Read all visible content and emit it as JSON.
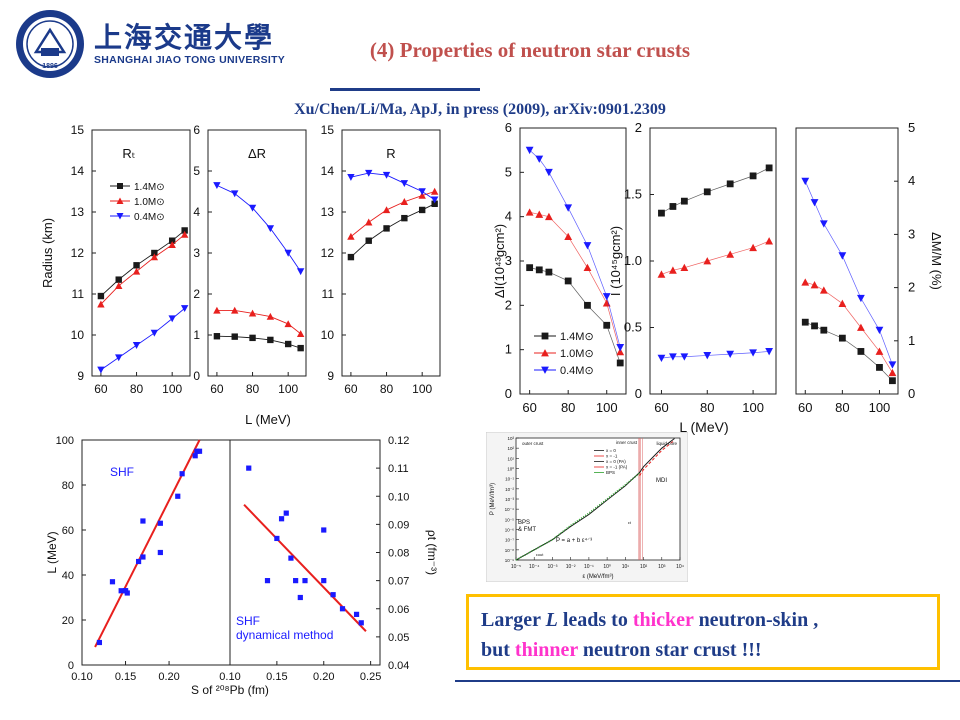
{
  "header": {
    "logo_cn": "上海交通大學",
    "logo_en": "SHANGHAI JIAO TONG UNIVERSITY",
    "logo_year": "1896",
    "title": "(4) Properties of neutron star crusts",
    "citation": "Xu/Chen/Li/Ma, ApJ, in press (2009), arXiv:0901.2309"
  },
  "conclusion": {
    "l1_a": "Larger ",
    "l1_b": "L",
    "l1_c": " leads to ",
    "l1_d": "thicker",
    "l1_e": " neutron-skin ,",
    "l2_a": "but ",
    "l2_b": "thinner",
    "l2_c": " neutron star crust !!!"
  },
  "colors": {
    "black": "#1a1a1a",
    "red": "#e8201e",
    "blue": "#1a1aff",
    "title": "#c0504d",
    "navy": "#1f3c88",
    "box": "#ffc000",
    "pink": "#ff33cc"
  },
  "chart_data": [
    {
      "id": "radius",
      "type": "line",
      "x": [
        60,
        70,
        80,
        90,
        100,
        107
      ],
      "xlim": [
        55,
        110
      ],
      "xticks": [
        "60",
        "80",
        "100"
      ],
      "xlabel": "L (MeV)",
      "legend": [
        "1.4M⊙",
        "1.0M⊙",
        "0.4M⊙"
      ],
      "panels": [
        {
          "label": "Rₜ",
          "ylabel": "Radius (km)",
          "ylim": [
            9,
            15
          ],
          "yticks": [
            "9",
            "10",
            "11",
            "12",
            "13",
            "14",
            "15"
          ],
          "series": [
            {
              "name": "1.4M⊙",
              "color": "#1a1a1a",
              "marker": "square",
              "values": [
                10.95,
                11.35,
                11.7,
                12.0,
                12.3,
                12.55
              ]
            },
            {
              "name": "1.0M⊙",
              "color": "#e8201e",
              "marker": "triangle-up",
              "values": [
                10.75,
                11.2,
                11.55,
                11.9,
                12.2,
                12.45
              ]
            },
            {
              "name": "0.4M⊙",
              "color": "#1a1aff",
              "marker": "triangle-down",
              "values": [
                9.15,
                9.45,
                9.75,
                10.05,
                10.4,
                10.65
              ]
            }
          ]
        },
        {
          "label": "ΔR",
          "ylim": [
            0,
            6
          ],
          "yticks": [
            "0",
            "1",
            "2",
            "3",
            "4",
            "5",
            "6"
          ],
          "series": [
            {
              "name": "1.4M⊙",
              "color": "#1a1a1a",
              "marker": "square",
              "values": [
                0.97,
                0.96,
                0.93,
                0.88,
                0.78,
                0.68
              ]
            },
            {
              "name": "1.0M⊙",
              "color": "#e8201e",
              "marker": "triangle-up",
              "values": [
                1.6,
                1.6,
                1.53,
                1.45,
                1.27,
                1.03
              ]
            },
            {
              "name": "0.4M⊙",
              "color": "#1a1aff",
              "marker": "triangle-down",
              "values": [
                4.65,
                4.45,
                4.1,
                3.6,
                3.0,
                2.55
              ]
            }
          ]
        },
        {
          "label": "R",
          "ylim": [
            9,
            15
          ],
          "yticks": [
            "9",
            "10",
            "11",
            "12",
            "13",
            "14",
            "15"
          ],
          "series": [
            {
              "name": "1.4M⊙",
              "color": "#1a1a1a",
              "marker": "square",
              "values": [
                11.9,
                12.3,
                12.6,
                12.85,
                13.05,
                13.2
              ]
            },
            {
              "name": "1.0M⊙",
              "color": "#e8201e",
              "marker": "triangle-up",
              "values": [
                12.4,
                12.75,
                13.05,
                13.25,
                13.4,
                13.5
              ]
            },
            {
              "name": "0.4M⊙",
              "color": "#1a1aff",
              "marker": "triangle-down",
              "values": [
                13.85,
                13.95,
                13.9,
                13.7,
                13.5,
                13.3
              ]
            }
          ]
        }
      ]
    },
    {
      "id": "inertia",
      "type": "line",
      "x": [
        60,
        65,
        70,
        80,
        90,
        100,
        107
      ],
      "xlim": [
        55,
        110
      ],
      "xticks": [
        "60",
        "80",
        "100"
      ],
      "xlabel": "L (MeV)",
      "legend": [
        "1.4M⊙",
        "1.0M⊙",
        "0.4M⊙"
      ],
      "panels": [
        {
          "ylabel": "ΔI(10⁴³gcm²)",
          "ylim": [
            0,
            6
          ],
          "yticks": [
            "0",
            "1",
            "2",
            "3",
            "4",
            "5",
            "6"
          ],
          "axis_side": "left",
          "series": [
            {
              "name": "1.4M⊙",
              "color": "#1a1a1a",
              "marker": "square",
              "values": [
                2.85,
                2.8,
                2.75,
                2.55,
                2.0,
                1.55,
                0.7
              ]
            },
            {
              "name": "1.0M⊙",
              "color": "#e8201e",
              "marker": "triangle-up",
              "values": [
                4.1,
                4.05,
                4.0,
                3.55,
                2.85,
                2.05,
                0.95
              ]
            },
            {
              "name": "0.4M⊙",
              "color": "#1a1aff",
              "marker": "triangle-down",
              "values": [
                5.5,
                5.3,
                5.0,
                4.2,
                3.35,
                2.2,
                1.05
              ]
            }
          ]
        },
        {
          "ylabel": "I (10⁴⁵gcm²)",
          "ylim": [
            0,
            2
          ],
          "yticks": [
            "0",
            "0.5",
            "1.0",
            "1.5",
            "2"
          ],
          "axis_side": "left",
          "series": [
            {
              "name": "1.4M⊙",
              "color": "#1a1a1a",
              "marker": "square",
              "values": [
                1.36,
                1.41,
                1.45,
                1.52,
                1.58,
                1.64,
                1.7
              ]
            },
            {
              "name": "1.0M⊙",
              "color": "#e8201e",
              "marker": "triangle-up",
              "values": [
                0.9,
                0.93,
                0.95,
                1.0,
                1.05,
                1.1,
                1.15
              ]
            },
            {
              "name": "0.4M⊙",
              "color": "#1a1aff",
              "marker": "triangle-down",
              "values": [
                0.27,
                0.28,
                0.28,
                0.29,
                0.3,
                0.31,
                0.32
              ]
            }
          ]
        },
        {
          "ylabel": "ΔM/M (%)",
          "ylim": [
            0,
            5
          ],
          "yticks": [
            "0",
            "1",
            "2",
            "3",
            "4",
            "5"
          ],
          "axis_side": "right",
          "series": [
            {
              "name": "1.4M⊙",
              "color": "#1a1a1a",
              "marker": "square",
              "values": [
                1.35,
                1.28,
                1.2,
                1.05,
                0.8,
                0.5,
                0.25
              ]
            },
            {
              "name": "1.0M⊙",
              "color": "#e8201e",
              "marker": "triangle-up",
              "values": [
                2.1,
                2.05,
                1.95,
                1.7,
                1.25,
                0.8,
                0.4
              ]
            },
            {
              "name": "0.4M⊙",
              "color": "#1a1aff",
              "marker": "triangle-down",
              "values": [
                4.0,
                3.6,
                3.2,
                2.6,
                1.8,
                1.2,
                0.55
              ]
            }
          ]
        }
      ]
    },
    {
      "id": "shf",
      "type": "scatter",
      "panels": [
        {
          "label": "SHF",
          "ylabel": "L (MeV)",
          "ylim": [
            0,
            100
          ],
          "yticks": [
            "0",
            "20",
            "40",
            "60",
            "80",
            "100"
          ],
          "xlim": [
            0.1,
            0.27
          ],
          "xticks": [
            "0.10",
            "0.15",
            "0.20"
          ],
          "color": "#1a1aff",
          "points": [
            [
              0.12,
              10
            ],
            [
              0.135,
              37
            ],
            [
              0.145,
              33
            ],
            [
              0.15,
              33
            ],
            [
              0.15,
              33
            ],
            [
              0.152,
              32
            ],
            [
              0.165,
              46
            ],
            [
              0.17,
              48
            ],
            [
              0.17,
              64
            ],
            [
              0.19,
              50
            ],
            [
              0.19,
              63
            ],
            [
              0.21,
              75
            ],
            [
              0.215,
              85
            ],
            [
              0.23,
              93
            ],
            [
              0.232,
              95
            ],
            [
              0.235,
              95
            ]
          ],
          "fit": [
            [
              0.115,
              8
            ],
            [
              0.235,
              100
            ]
          ],
          "fit_color": "#e8201e"
        },
        {
          "label": "SHF\ndynamical method",
          "ylabel": "ρt (fm⁻³)",
          "ylim": [
            0.04,
            0.12
          ],
          "yticks": [
            "0.04",
            "0.05",
            "0.06",
            "0.07",
            "0.08",
            "0.09",
            "0.10",
            "0.11",
            "0.12"
          ],
          "xlim": [
            0.1,
            0.26
          ],
          "xticks": [
            "0.10",
            "0.15",
            "0.20",
            "0.25"
          ],
          "color": "#1a1aff",
          "points": [
            [
              0.12,
              0.11
            ],
            [
              0.14,
              0.07
            ],
            [
              0.15,
              0.085
            ],
            [
              0.155,
              0.092
            ],
            [
              0.16,
              0.094
            ],
            [
              0.165,
              0.078
            ],
            [
              0.17,
              0.07
            ],
            [
              0.175,
              0.064
            ],
            [
              0.18,
              0.07
            ],
            [
              0.2,
              0.07
            ],
            [
              0.2,
              0.088
            ],
            [
              0.21,
              0.065
            ],
            [
              0.22,
              0.06
            ],
            [
              0.235,
              0.058
            ],
            [
              0.24,
              0.055
            ]
          ],
          "fit": [
            [
              0.115,
              0.097
            ],
            [
              0.245,
              0.052
            ]
          ],
          "fit_color": "#e8201e"
        }
      ],
      "xlabel": "S of ²⁰⁸Pb (fm)"
    },
    {
      "id": "eos",
      "type": "line",
      "xlabel": "ε (MeV/fm³)",
      "ylabel": "P (MeV/fm³)",
      "xlog": true,
      "ylog": true,
      "xlim": [
        1e-05,
        10000
      ],
      "ylim": [
        1e-09,
        1000
      ],
      "xticks": [
        "10⁻⁵",
        "10⁻⁴",
        "10⁻³",
        "10⁻²",
        "10⁻¹",
        "10⁰",
        "10¹",
        "10²",
        "10³",
        "10⁴"
      ],
      "yticks": [
        "10⁻⁹",
        "10⁻⁸",
        "10⁻⁷",
        "10⁻⁶",
        "10⁻⁵",
        "10⁻⁴",
        "10⁻³",
        "10⁻²",
        "10⁻¹",
        "10⁰",
        "10¹",
        "10²",
        "10³"
      ],
      "annotations": [
        "outer crust",
        "inner crust",
        "liquid core",
        "MDI",
        "BPS",
        "& FMT",
        "P = a + b ε⁴⸍³",
        "εout",
        "εt"
      ],
      "legend": [
        "x = 0",
        "x = -1",
        "x = 0  (PA)",
        "x = -1  (PA)",
        "BPS"
      ],
      "series": [
        {
          "name": "x = 0",
          "color": "#1a1a1a",
          "dash": "solid",
          "values": [
            [
              1e-05,
              1e-09
            ],
            [
              0.0001,
              1e-08
            ],
            [
              0.001,
              1e-07
            ],
            [
              0.01,
              2e-06
            ],
            [
              0.1,
              3e-05
            ],
            [
              1,
              0.0008
            ],
            [
              10,
              0.02
            ],
            [
              60,
              0.4
            ],
            [
              100,
              1.5
            ],
            [
              1000,
              100
            ],
            [
              5000,
              900
            ]
          ]
        },
        {
          "name": "x = -1",
          "color": "#e8201e",
          "dash": "dash",
          "values": [
            [
              60,
              0.2
            ],
            [
              100,
              0.8
            ],
            [
              1000,
              60
            ],
            [
              5000,
              600
            ]
          ]
        },
        {
          "name": "BPS",
          "color": "#2ca02c",
          "dash": "dot",
          "values": [
            [
              1e-05,
              1e-09
            ],
            [
              0.0001,
              1e-08
            ],
            [
              0.001,
              1e-07
            ],
            [
              0.01,
              2.5e-06
            ],
            [
              0.1,
              4e-05
            ],
            [
              1,
              0.001
            ],
            [
              10,
              0.025
            ],
            [
              60,
              0.35
            ]
          ]
        }
      ],
      "vlines": [
        55,
        60,
        70,
        90
      ]
    }
  ]
}
